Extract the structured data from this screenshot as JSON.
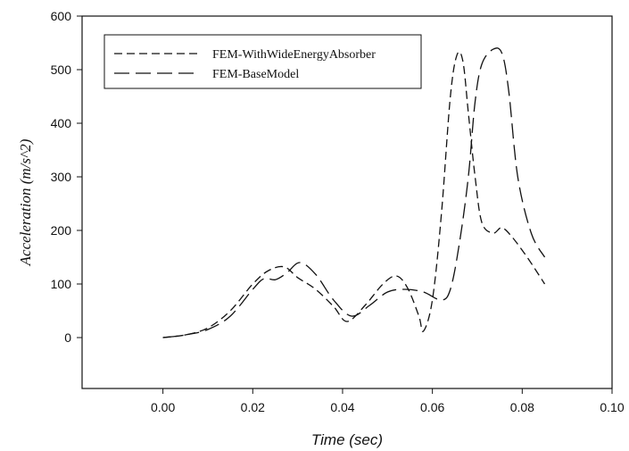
{
  "chart_data": {
    "type": "line",
    "xlabel": "Time (sec)",
    "ylabel": "Acceleration (m/s^2)",
    "xlim": [
      -0.018,
      0.1
    ],
    "ylim": [
      -95,
      600
    ],
    "xticks": [
      0.0,
      0.02,
      0.04,
      0.06,
      0.08,
      0.1
    ],
    "xtick_labels": [
      "0.00",
      "0.02",
      "0.04",
      "0.06",
      "0.08",
      "0.10"
    ],
    "yticks": [
      0,
      100,
      200,
      300,
      400,
      500,
      600
    ],
    "ytick_labels": [
      "0",
      "100",
      "200",
      "300",
      "400",
      "500",
      "600"
    ],
    "grid": false,
    "legend_position": "top-left",
    "series": [
      {
        "name": "FEM-WithWideEnergyAbsorber",
        "dash": "short",
        "color": "#111111",
        "x": [
          0.0,
          0.005,
          0.01,
          0.015,
          0.02,
          0.0235,
          0.027,
          0.03,
          0.034,
          0.038,
          0.041,
          0.045,
          0.049,
          0.052,
          0.0545,
          0.057,
          0.058,
          0.06,
          0.062,
          0.064,
          0.0655,
          0.0668,
          0.068,
          0.0695,
          0.071,
          0.0735,
          0.0755,
          0.078,
          0.0815,
          0.085
        ],
        "y": [
          0,
          5,
          18,
          50,
          100,
          125,
          132,
          112,
          90,
          58,
          30,
          60,
          100,
          115,
          92,
          40,
          12,
          70,
          230,
          450,
          528,
          515,
          420,
          300,
          215,
          195,
          205,
          185,
          145,
          100
        ]
      },
      {
        "name": "FEM-BaseModel",
        "dash": "long",
        "color": "#111111",
        "x": [
          0.0,
          0.005,
          0.01,
          0.015,
          0.02,
          0.0225,
          0.025,
          0.0275,
          0.0305,
          0.034,
          0.038,
          0.042,
          0.046,
          0.05,
          0.054,
          0.058,
          0.062,
          0.064,
          0.066,
          0.068,
          0.0695,
          0.071,
          0.0735,
          0.0755,
          0.077,
          0.079,
          0.082,
          0.085
        ],
        "y": [
          0,
          5,
          15,
          40,
          90,
          110,
          108,
          120,
          140,
          118,
          70,
          40,
          60,
          85,
          90,
          85,
          70,
          90,
          175,
          300,
          440,
          510,
          538,
          530,
          460,
          300,
          195,
          150
        ]
      }
    ]
  }
}
